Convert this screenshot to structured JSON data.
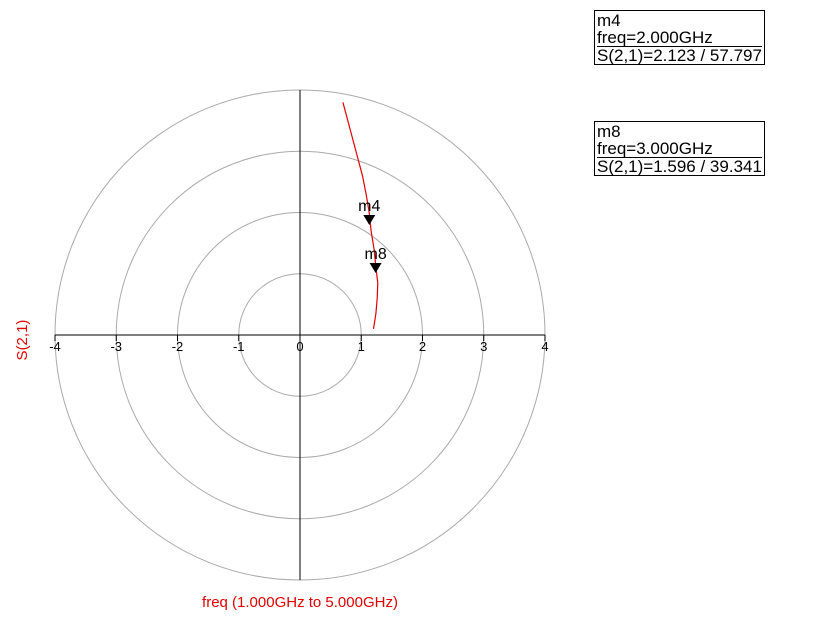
{
  "chart_data": {
    "type": "polar",
    "ylabel": "S(2,1)",
    "xlabel": "freq (1.000GHz to 5.000GHz)",
    "radial_ticks": [
      1,
      2,
      3,
      4
    ],
    "axis_ticks": [
      -4,
      -3,
      -2,
      -1,
      0,
      1,
      2,
      3,
      4
    ],
    "rlim": [
      0,
      4
    ],
    "series": [
      {
        "name": "S(2,1)",
        "color": "#e00000",
        "points_xy": [
          [
            0.7,
            3.8
          ],
          [
            0.78,
            3.5
          ],
          [
            0.86,
            3.2
          ],
          [
            0.94,
            2.9
          ],
          [
            1.02,
            2.6
          ],
          [
            1.08,
            2.3
          ],
          [
            1.13,
            2.0
          ],
          [
            1.16,
            1.7
          ],
          [
            1.21,
            1.4
          ],
          [
            1.24,
            1.1
          ],
          [
            1.27,
            0.85
          ],
          [
            1.26,
            0.6
          ],
          [
            1.24,
            0.35
          ],
          [
            1.2,
            0.1
          ]
        ]
      }
    ],
    "markers": [
      {
        "id": "m4",
        "freq": "freq=2.000GHz",
        "value": "S(2,1)=2.123 / 57.797",
        "mag": 2.123,
        "angle_deg": 57.797
      },
      {
        "id": "m8",
        "freq": "freq=3.000GHz",
        "value": "S(2,1)=1.596 / 39.341",
        "mag": 1.596,
        "angle_deg": 39.341
      }
    ]
  }
}
